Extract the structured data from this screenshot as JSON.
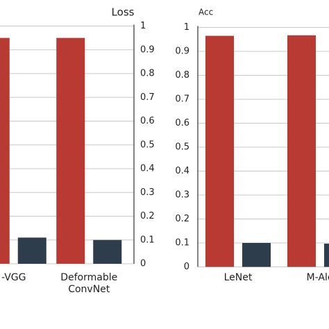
{
  "chart_data": [
    {
      "type": "bar",
      "ylabel": "Loss",
      "yaxis_position": "right",
      "grid": true,
      "categories": [
        "-VGG",
        "Deformable ConvNet"
      ],
      "series": [
        {
          "color": "#b83a33",
          "values": [
            0.95,
            0.95
          ]
        },
        {
          "color": "#2e3d4c",
          "values": [
            0.11,
            0.1
          ]
        }
      ],
      "ylim": [
        0,
        1
      ],
      "yticks": [
        0,
        0.1,
        0.2,
        0.3,
        0.4,
        0.5,
        0.6,
        0.7,
        0.8,
        0.9,
        1
      ]
    },
    {
      "type": "bar",
      "ylabel": "Acc",
      "yaxis_position": "left",
      "grid": true,
      "categories": [
        "LeNet",
        "M-Ale"
      ],
      "series": [
        {
          "color": "#b83a33",
          "values": [
            0.965,
            0.967
          ]
        },
        {
          "color": "#2e3d4c",
          "values": [
            0.1,
            0.097
          ]
        }
      ],
      "ylim": [
        0,
        1
      ],
      "yticks": [
        0,
        0.1,
        0.2,
        0.3,
        0.4,
        0.5,
        0.6,
        0.7,
        0.8,
        0.9,
        1
      ]
    }
  ]
}
